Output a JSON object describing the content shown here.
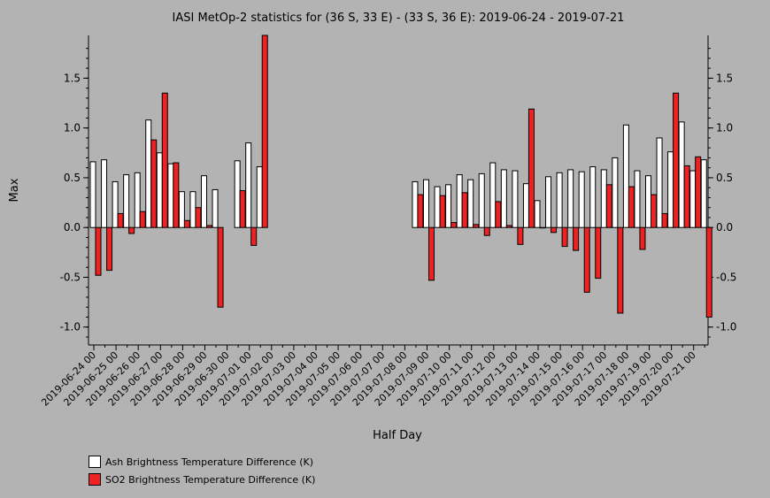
{
  "chart_data": {
    "type": "bar",
    "title": "IASI MetOp-2 statistics for (36 S, 33 E) - (33 S, 36 E): 2019-06-24 - 2019-07-21",
    "xlabel": "Half Day",
    "ylabel": "Max",
    "ylim": [
      -1.18,
      1.93
    ],
    "yticks": [
      -1.0,
      -0.5,
      0.0,
      0.5,
      1.0,
      1.5
    ],
    "ytick_labels": [
      "-1.0",
      "-0.5",
      "0.0",
      "0.5",
      "1.0",
      "1.5"
    ],
    "x_tick_labels": [
      "2019-06-24 00",
      "2019-06-25 00",
      "2019-06-26 00",
      "2019-06-27 00",
      "2019-06-28 00",
      "2019-06-29 00",
      "2019-06-30 00",
      "2019-07-01 00",
      "2019-07-02 00",
      "2019-07-03 00",
      "2019-07-04 00",
      "2019-07-05 00",
      "2019-07-06 00",
      "2019-07-07 00",
      "2019-07-08 00",
      "2019-07-09 00",
      "2019-07-10 00",
      "2019-07-11 00",
      "2019-07-12 00",
      "2019-07-13 00",
      "2019-07-14 00",
      "2019-07-15 00",
      "2019-07-16 00",
      "2019-07-17 00",
      "2019-07-18 00",
      "2019-07-19 00",
      "2019-07-20 00",
      "2019-07-21 00"
    ],
    "grid": false,
    "legend_position": "bottom-left",
    "series": [
      {
        "name": "Ash Brightness Temperature Difference (K)",
        "color": "#ffffff",
        "values": [
          0.66,
          0.68,
          0.46,
          0.53,
          0.55,
          1.08,
          0.75,
          0.64,
          0.36,
          0.36,
          0.52,
          0.38,
          null,
          0.67,
          0.85,
          0.61,
          null,
          null,
          null,
          null,
          null,
          null,
          null,
          null,
          null,
          null,
          null,
          null,
          null,
          0.46,
          0.48,
          0.41,
          0.43,
          0.53,
          0.48,
          0.54,
          0.65,
          0.58,
          0.57,
          0.44,
          0.27,
          0.51,
          0.55,
          0.58,
          0.56,
          0.61,
          0.58,
          0.7,
          1.03,
          0.57,
          0.52,
          0.9,
          0.76,
          1.06,
          0.57,
          0.68
        ]
      },
      {
        "name": "SO2 Brightness Temperature Difference (K)",
        "color": "#ee2222",
        "values": [
          -0.48,
          -0.43,
          0.14,
          -0.06,
          0.16,
          0.88,
          1.35,
          0.65,
          0.07,
          0.2,
          0.02,
          -0.8,
          null,
          0.37,
          -0.18,
          1.93,
          null,
          null,
          null,
          null,
          null,
          null,
          null,
          null,
          null,
          null,
          null,
          null,
          null,
          0.33,
          -0.53,
          0.32,
          0.05,
          0.35,
          0.03,
          -0.08,
          0.26,
          0.02,
          -0.17,
          1.19,
          0.0,
          -0.05,
          -0.19,
          -0.23,
          -0.65,
          -0.51,
          0.43,
          -0.86,
          0.41,
          -0.22,
          0.33,
          0.14,
          1.35,
          0.62,
          0.71,
          -0.9
        ]
      }
    ]
  }
}
